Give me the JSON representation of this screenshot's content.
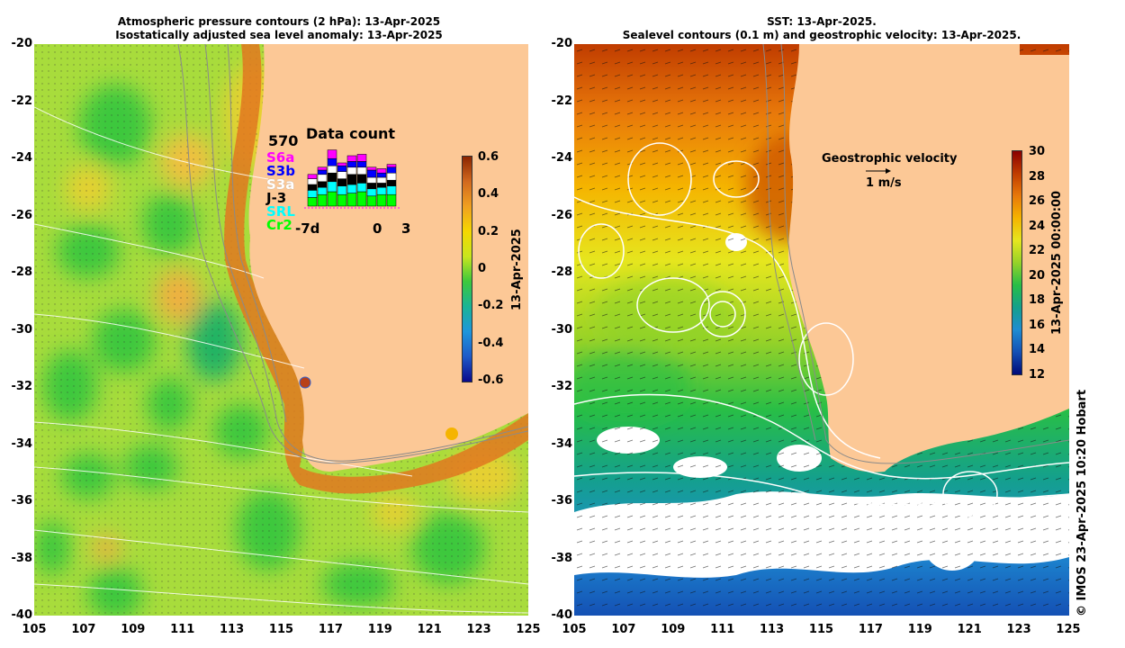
{
  "left_panel": {
    "title_line1": "Atmospheric pressure contours (2 hPa): 13-Apr-2025",
    "title_line2": "Isostatically adjusted sea level anomaly: 13-Apr-2025",
    "y_ticks": [
      "-20",
      "-22",
      "-24",
      "-26",
      "-28",
      "-30",
      "-32",
      "-34",
      "-36",
      "-38",
      "-40"
    ],
    "x_ticks": [
      "105",
      "107",
      "109",
      "111",
      "113",
      "115",
      "117",
      "119",
      "121",
      "123",
      "125"
    ],
    "colorbar": {
      "ticks": [
        "0.6",
        "0.4",
        "0.2",
        "0",
        "-0.2",
        "-0.4",
        "-0.6"
      ],
      "label": "13-Apr-2025",
      "colors": [
        "#8b2500",
        "#d2691e",
        "#f0a020",
        "#f5d800",
        "#c8e61e",
        "#3cc83c",
        "#19b496",
        "#1e96dc",
        "#1e5ac8",
        "#0a0a8c"
      ]
    },
    "data_count": {
      "total": "570",
      "title": "Data count",
      "missions": [
        {
          "label": "S6a",
          "color": "#ff00ff"
        },
        {
          "label": "S3b",
          "color": "#0000ff"
        },
        {
          "label": "S3a",
          "color": "#ffffff"
        },
        {
          "label": "J-3",
          "color": "#000000"
        },
        {
          "label": "SRL",
          "color": "#00ffff"
        },
        {
          "label": "Cr2",
          "color": "#00ff00"
        }
      ],
      "axis_left": "-7d",
      "axis_mid": "0",
      "axis_right": "3"
    }
  },
  "right_panel": {
    "title_line1": "SST: 13-Apr-2025.",
    "title_line2": "Sealevel contours (0.1 m) and geostrophic velocity: 13-Apr-2025.",
    "y_ticks": [
      "-20",
      "-22",
      "-24",
      "-26",
      "-28",
      "-30",
      "-32",
      "-34",
      "-36",
      "-38",
      "-40"
    ],
    "x_ticks": [
      "105",
      "107",
      "109",
      "111",
      "113",
      "115",
      "117",
      "119",
      "121",
      "123",
      "125"
    ],
    "geostrophic_label": "Geostrophic velocity",
    "velocity_scale": "1 m/s",
    "colorbar": {
      "ticks": [
        "30",
        "28",
        "26",
        "24",
        "22",
        "20",
        "18",
        "16",
        "14",
        "12"
      ],
      "label": "13-Apr-2025 00:00:00",
      "colors": [
        "#8b0000",
        "#c03c00",
        "#e8780a",
        "#f5b400",
        "#e6e61e",
        "#96d228",
        "#28be46",
        "#14a08c",
        "#1e8cd2",
        "#1450b4",
        "#000a78"
      ]
    }
  },
  "credit": "© IMOS 23-Apr-2025 10:20 Hobart",
  "colors": {
    "land": "#fcc896",
    "ocean_left": "#7fd24a",
    "coast_shelf": "#e07820"
  }
}
